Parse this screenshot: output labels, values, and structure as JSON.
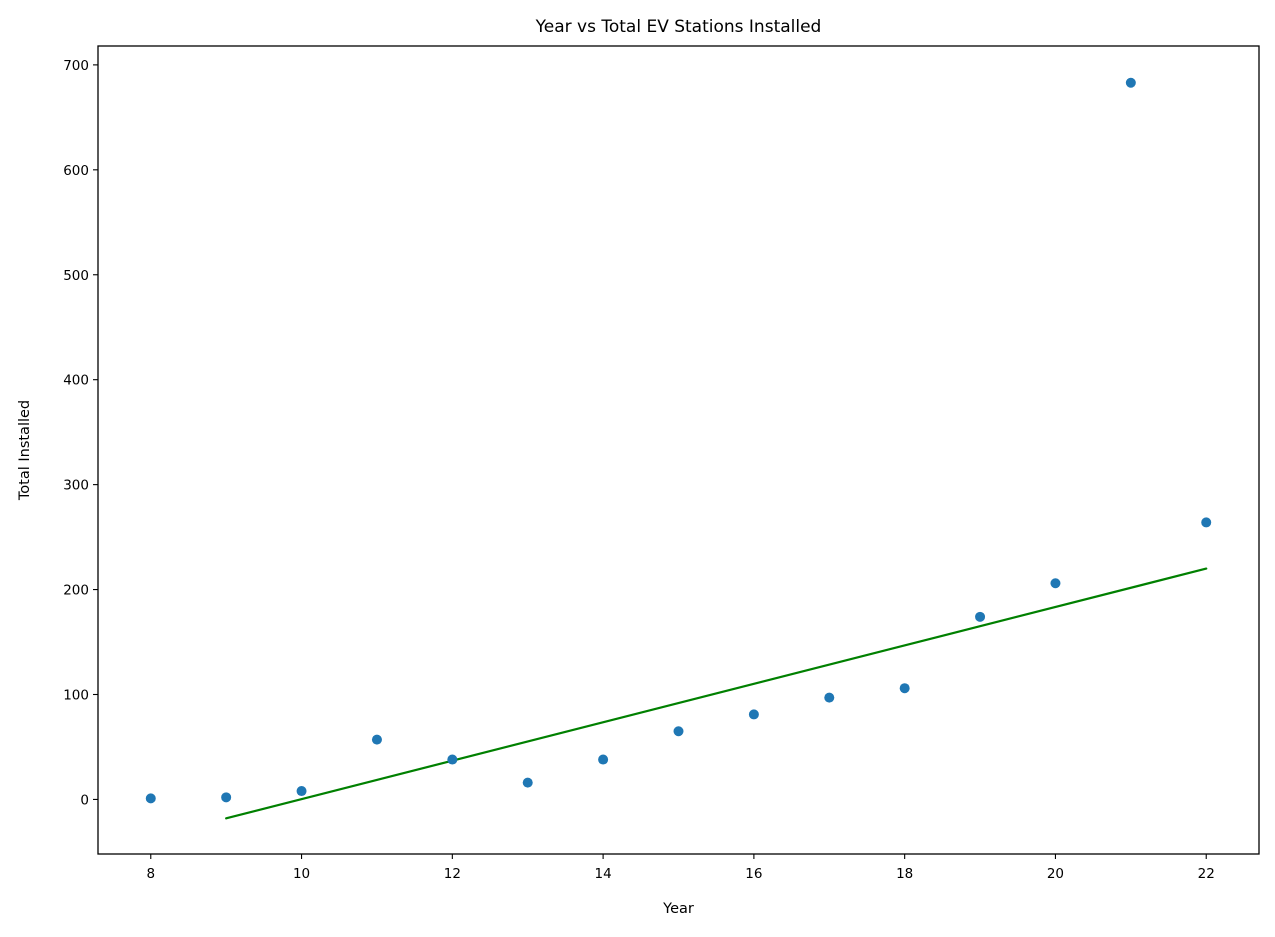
{
  "chart_data": {
    "type": "scatter",
    "title": "Year vs Total EV Stations Installed",
    "xlabel": "Year",
    "ylabel": "Total Installed",
    "xlim": [
      7.3,
      22.7
    ],
    "ylim": [
      -52,
      718
    ],
    "xticks": [
      8,
      10,
      12,
      14,
      16,
      18,
      20,
      22
    ],
    "yticks": [
      0,
      100,
      200,
      300,
      400,
      500,
      600,
      700
    ],
    "grid": false,
    "legend": "none",
    "series": [
      {
        "type": "scatter",
        "color": "#1f77b4",
        "points": [
          {
            "x": 8,
            "y": 1
          },
          {
            "x": 9,
            "y": 2
          },
          {
            "x": 10,
            "y": 8
          },
          {
            "x": 11,
            "y": 57
          },
          {
            "x": 12,
            "y": 38
          },
          {
            "x": 13,
            "y": 16
          },
          {
            "x": 14,
            "y": 38
          },
          {
            "x": 15,
            "y": 65
          },
          {
            "x": 16,
            "y": 81
          },
          {
            "x": 17,
            "y": 97
          },
          {
            "x": 18,
            "y": 106
          },
          {
            "x": 19,
            "y": 174
          },
          {
            "x": 20,
            "y": 206
          },
          {
            "x": 21,
            "y": 683
          },
          {
            "x": 22,
            "y": 264
          }
        ]
      },
      {
        "type": "line",
        "color": "#008000",
        "points": [
          {
            "x": 9,
            "y": -18
          },
          {
            "x": 22,
            "y": 220
          }
        ]
      }
    ]
  }
}
